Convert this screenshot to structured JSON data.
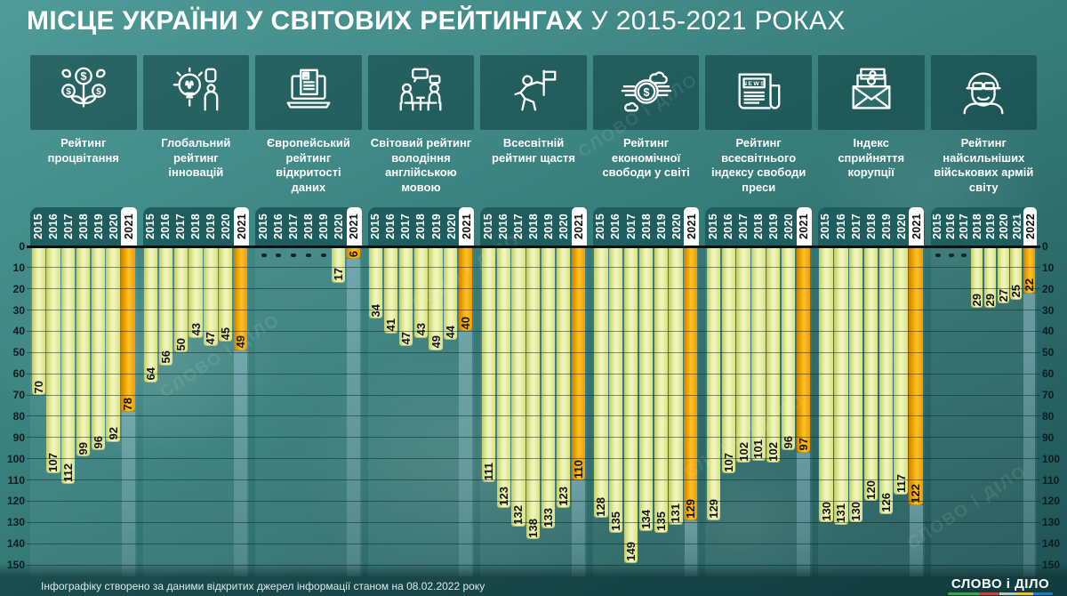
{
  "title": {
    "bold": "МІСЦЕ УКРАЇНИ У СВІТОВИХ РЕЙТИНГАХ",
    "regular": "У 2015-2021 РОКАХ"
  },
  "watermark": "СЛОВО і ДІЛО",
  "icons": {
    "glyphs": {
      "dollar": "$",
      "news": "NEWS"
    }
  },
  "colors": {
    "background_teal": "#357b78",
    "bar_yellow": "#e9efa6",
    "bar_highlight_orange": "#f6a900",
    "year_band": "#1f5e5e",
    "highlight_year_bg": "#ffffff"
  },
  "axis": {
    "min": 0,
    "max": 150,
    "step": 10,
    "ticks": [
      0,
      10,
      20,
      30,
      40,
      50,
      60,
      70,
      80,
      90,
      100,
      110,
      120,
      130,
      140,
      150
    ],
    "sides": [
      "left",
      "right"
    ]
  },
  "chart_data": {
    "type": "bar",
    "orientation": "vertical-inverted-rank",
    "ylim": [
      0,
      150
    ],
    "grid": true,
    "groups": [
      {
        "label": "Рейтинг процвітання",
        "icon": "money-plant-icon",
        "years": [
          "2015",
          "2016",
          "2017",
          "2018",
          "2019",
          "2020",
          "2021"
        ],
        "values": [
          70,
          107,
          112,
          99,
          96,
          92,
          78
        ],
        "highlight_year": "2021",
        "highlight_value": 78
      },
      {
        "label": "Глобальний рейтинг інновацій",
        "icon": "lightbulb-icon",
        "years": [
          "2015",
          "2016",
          "2017",
          "2018",
          "2019",
          "2020",
          "2021"
        ],
        "values": [
          64,
          56,
          50,
          43,
          47,
          45,
          49
        ],
        "highlight_year": "2021",
        "highlight_value": 49
      },
      {
        "label": "Європейський рейтинг відкритості даних",
        "icon": "laptop-document-icon",
        "years": [
          "2015",
          "2016",
          "2017",
          "2018",
          "2019",
          "2020",
          "2021"
        ],
        "values": [
          null,
          null,
          null,
          null,
          null,
          17,
          6
        ],
        "highlight_year": "2021",
        "highlight_value": 6
      },
      {
        "label": "Світовий рейтинг володіння англійською мовою",
        "icon": "conversation-icon",
        "years": [
          "2015",
          "2016",
          "2017",
          "2018",
          "2019",
          "2020",
          "2021"
        ],
        "values": [
          34,
          41,
          47,
          43,
          49,
          44,
          40
        ],
        "highlight_year": "2021",
        "highlight_value": 40
      },
      {
        "label": "Всесвітній рейтинг щастя",
        "icon": "person-flag-icon",
        "years": [
          "2015",
          "2016",
          "2017",
          "2018",
          "2019",
          "2020",
          "2021"
        ],
        "values": [
          111,
          123,
          132,
          138,
          133,
          123,
          110
        ],
        "highlight_year": "2021",
        "highlight_value": 110
      },
      {
        "label": "Рейтинг економічної свободи у світі",
        "icon": "winged-dollar-icon",
        "years": [
          "2015",
          "2016",
          "2017",
          "2018",
          "2019",
          "2020",
          "2021"
        ],
        "values": [
          128,
          135,
          149,
          134,
          135,
          131,
          129
        ],
        "highlight_year": "2021",
        "highlight_value": 129
      },
      {
        "label": "Рейтинг всесвітнього індексу свободи преси",
        "icon": "newspaper-icon",
        "years": [
          "2015",
          "2016",
          "2017",
          "2018",
          "2019",
          "2020",
          "2021"
        ],
        "values": [
          129,
          107,
          102,
          101,
          102,
          96,
          97
        ],
        "highlight_year": "2021",
        "highlight_value": 97
      },
      {
        "label": "Індекс сприйняття корупції",
        "icon": "money-envelope-icon",
        "years": [
          "2015",
          "2016",
          "2017",
          "2018",
          "2019",
          "2020",
          "2021"
        ],
        "values": [
          130,
          131,
          130,
          120,
          126,
          117,
          122
        ],
        "highlight_year": "2021",
        "highlight_value": 122
      },
      {
        "label": "Рейтинг найсильніших військових армій світу",
        "icon": "soldier-icon",
        "years": [
          "2015",
          "2016",
          "2017",
          "2018",
          "2019",
          "2020",
          "2021",
          "2022"
        ],
        "values": [
          null,
          null,
          null,
          29,
          29,
          27,
          25,
          22
        ],
        "highlight_year": "2022",
        "highlight_value": 22
      }
    ]
  },
  "footer": {
    "note": "Інфографіку створено за даними відкритих джерел інформації станом на 08.02.2022 року",
    "logo": {
      "slovo": "СЛОВО",
      "i": "і",
      "dilo": "ДІЛО"
    }
  }
}
